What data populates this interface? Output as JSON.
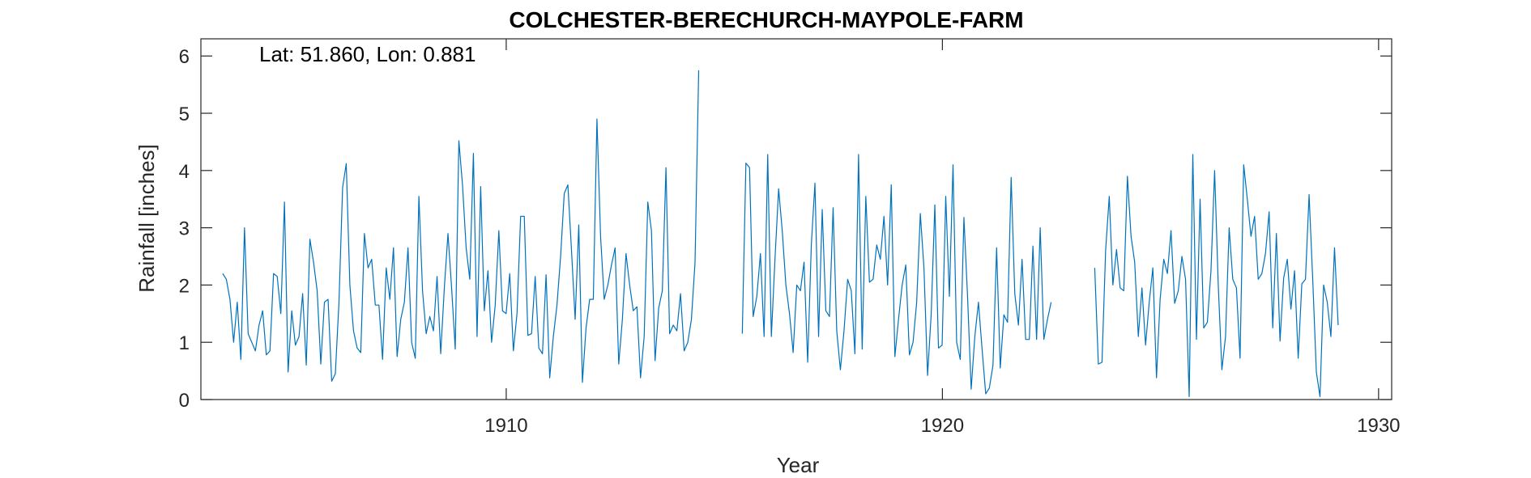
{
  "chart_data": {
    "type": "line",
    "title": "COLCHESTER-BERECHURCH-MAYPOLE-FARM",
    "annotation": "Lat: 51.860, Lon: 0.881",
    "xlabel": "Year",
    "ylabel": "Rainfall [inches]",
    "xlim": [
      1903.0,
      1930.3
    ],
    "ylim": [
      0,
      6.3
    ],
    "xticks": [
      1910,
      1920,
      1930
    ],
    "yticks": [
      0,
      1,
      2,
      3,
      4,
      5,
      6
    ],
    "grid": false,
    "line_color": "#0072bd",
    "series": [
      {
        "x_start": 1903.5,
        "step": 0.0833,
        "segments": [
          {
            "start_index": 0,
            "values": [
              2.2,
              2.1,
              1.75,
              1.0,
              1.7,
              0.7,
              3.0,
              1.15,
              1.0,
              0.85,
              1.3,
              1.55,
              0.78,
              0.85,
              2.2,
              2.15,
              1.5,
              3.45,
              0.48,
              1.55,
              0.95,
              1.1,
              1.85,
              0.6,
              2.8,
              2.4,
              1.9,
              0.62,
              1.7,
              1.75,
              0.32,
              0.45,
              1.7,
              3.7,
              4.12,
              2.0,
              1.2,
              0.9,
              0.82,
              2.9,
              2.3,
              2.45,
              1.65,
              1.65,
              0.7,
              2.3,
              1.75,
              2.65,
              0.75,
              1.4,
              1.7,
              2.65,
              1.0,
              0.72,
              3.55,
              1.9,
              1.15,
              1.45,
              1.2,
              2.15,
              0.8,
              1.95,
              2.9,
              1.95,
              0.88,
              4.52,
              3.75,
              2.65,
              2.1,
              4.3,
              1.1,
              3.72,
              1.55,
              2.25,
              1.0,
              1.65,
              2.95,
              1.55,
              1.5,
              2.2,
              0.85,
              1.5,
              3.2,
              3.2,
              1.12,
              1.15,
              2.15,
              0.9,
              0.8,
              2.18,
              0.38,
              1.1,
              1.65,
              2.5,
              3.6,
              3.75,
              2.6,
              1.4,
              3.05,
              0.3,
              1.25,
              1.75,
              1.75,
              4.9,
              2.85,
              1.75,
              2.0,
              2.35,
              2.65,
              0.62,
              1.4,
              2.55,
              2.0,
              1.55,
              1.62,
              0.38,
              1.1,
              3.45,
              2.95,
              0.68,
              1.6,
              1.9,
              4.05,
              1.15,
              1.3,
              1.2,
              1.85,
              0.85,
              1.0,
              1.4,
              2.4,
              5.75
            ]
          },
          {
            "start_index": 143,
            "values": [
              1.15,
              4.13,
              4.05,
              1.45,
              1.8,
              2.55,
              1.1,
              4.28,
              1.1,
              2.45,
              3.68,
              2.95,
              2.0,
              1.5,
              0.82,
              2.0,
              1.9,
              2.4,
              0.65,
              2.7,
              3.78,
              1.1,
              3.32,
              1.55,
              1.45,
              3.35,
              1.2,
              0.52,
              1.2,
              2.1,
              1.9,
              0.8,
              4.28,
              0.88,
              3.55,
              2.05,
              2.1,
              2.7,
              2.45,
              3.2,
              2.0,
              3.75,
              0.75,
              1.4,
              2.0,
              2.35,
              0.78,
              1.0,
              1.7,
              3.25,
              2.3,
              0.42,
              1.5,
              3.4,
              0.9,
              0.95,
              3.55,
              1.8,
              4.1,
              1.0,
              0.7,
              3.18,
              1.8,
              0.18,
              1.1,
              1.7,
              0.88,
              0.1,
              0.2,
              0.6,
              2.65,
              0.55,
              1.48,
              1.35,
              3.88,
              1.85,
              1.3,
              2.45,
              1.05,
              1.05,
              2.68,
              1.05,
              3.0,
              1.05,
              1.4,
              1.7
            ]
          },
          {
            "start_index": 240,
            "values": [
              2.3,
              0.62,
              0.65,
              2.6,
              3.55,
              2.0,
              2.62,
              1.95,
              1.9,
              3.9,
              2.85,
              2.4,
              1.1,
              1.95,
              0.95,
              1.7,
              2.3,
              0.38,
              1.75,
              2.45,
              2.2,
              2.95,
              1.68,
              1.9,
              2.5,
              2.1,
              0.05,
              4.28,
              1.05,
              3.5,
              1.25,
              1.35,
              2.25,
              4.0,
              2.0,
              0.52,
              1.1,
              3.0,
              2.1,
              1.95,
              0.72,
              4.1,
              3.5,
              2.85,
              3.2,
              2.1,
              2.2,
              2.55,
              3.28,
              1.25,
              2.9,
              1.02,
              2.12,
              2.45,
              1.58,
              2.25,
              0.72,
              2.02,
              2.1,
              3.58,
              2.1,
              0.48,
              0.05,
              2.0,
              1.7,
              1.1,
              2.65,
              1.3
            ]
          }
        ]
      }
    ]
  }
}
